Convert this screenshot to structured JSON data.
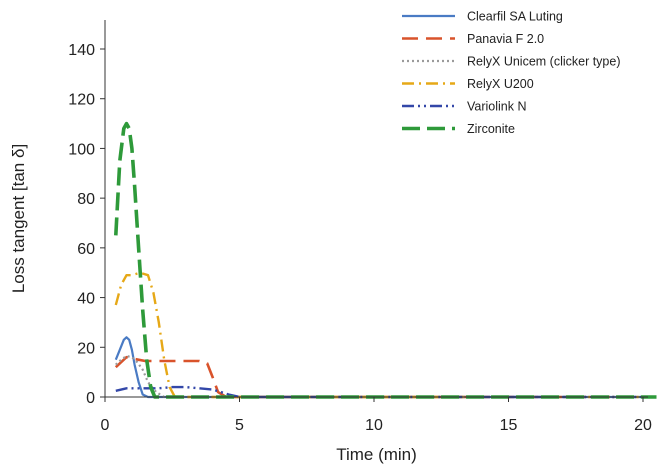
{
  "chart_data": {
    "type": "line",
    "xlabel": "Time (min)",
    "ylabel": "Loss tangent [tan δ]",
    "xlim": [
      0,
      20.5
    ],
    "ylim": [
      0,
      150
    ],
    "xticks": [
      0,
      5,
      10,
      15,
      20
    ],
    "yticks": [
      0,
      20,
      40,
      60,
      80,
      100,
      120,
      140
    ],
    "grid": false,
    "legend_position": "top-right",
    "series": [
      {
        "name": "Clearfil SA Luting",
        "color": "#4a7bc4",
        "dash": "solid",
        "x": [
          0.4,
          0.55,
          0.7,
          0.8,
          0.9,
          1.0,
          1.1,
          1.25,
          1.4,
          1.6,
          2.0,
          5,
          10,
          15,
          20.5
        ],
        "y": [
          15,
          19,
          23,
          24,
          23,
          19,
          13,
          6,
          1,
          0,
          0,
          0,
          0,
          0,
          0
        ]
      },
      {
        "name": "Panavia F 2.0",
        "color": "#d9532b",
        "dash": "long-dash",
        "x": [
          0.4,
          0.6,
          0.8,
          1.0,
          1.5,
          2.0,
          2.5,
          3.0,
          3.5,
          3.8,
          4.0,
          4.2,
          4.5,
          5,
          10,
          15,
          20.5
        ],
        "y": [
          12,
          14,
          16,
          15.5,
          14.5,
          14.5,
          14.5,
          14.5,
          14.5,
          13.5,
          8,
          2,
          0,
          0,
          0,
          0,
          0
        ]
      },
      {
        "name": "RelyX Unicem (clicker type)",
        "color": "#9a9a9a",
        "dash": "dotted",
        "x": [
          0.4,
          0.6,
          0.8,
          1.0,
          1.2,
          1.4,
          1.6,
          1.9,
          2.2,
          5,
          10,
          15,
          20.5
        ],
        "y": [
          13,
          15,
          16.5,
          16,
          14,
          11,
          6,
          2,
          0,
          0,
          0,
          0,
          0
        ]
      },
      {
        "name": "RelyX U200",
        "color": "#e6a817",
        "dash": "dash-dot",
        "x": [
          0.4,
          0.6,
          0.8,
          1.0,
          1.3,
          1.6,
          1.8,
          2.0,
          2.2,
          2.4,
          2.6,
          3.0,
          5,
          10,
          15,
          20.5
        ],
        "y": [
          37,
          45,
          49,
          49,
          50,
          49,
          42,
          30,
          15,
          4,
          0,
          0,
          0,
          0,
          0,
          0
        ]
      },
      {
        "name": "Variolink N",
        "color": "#3347a8",
        "dash": "dash-dot-dot",
        "x": [
          0.4,
          0.8,
          1.2,
          1.6,
          2.0,
          2.5,
          3.0,
          3.5,
          4.0,
          4.3,
          4.6,
          5.0,
          10,
          15,
          20.5
        ],
        "y": [
          2.5,
          3.5,
          3.5,
          3.5,
          3.5,
          4,
          4,
          3.5,
          3,
          2,
          1,
          0,
          0,
          0,
          0
        ]
      },
      {
        "name": "Zirconite",
        "color": "#2e9a3a",
        "dash": "heavy-dash",
        "x": [
          0.4,
          0.55,
          0.7,
          0.8,
          0.9,
          1.0,
          1.1,
          1.25,
          1.4,
          1.55,
          1.7,
          1.85,
          2.0,
          5,
          10,
          15,
          20.5
        ],
        "y": [
          65,
          95,
          108,
          110,
          108,
          100,
          85,
          60,
          35,
          15,
          4,
          0,
          0,
          0,
          0,
          0,
          0
        ]
      }
    ]
  }
}
